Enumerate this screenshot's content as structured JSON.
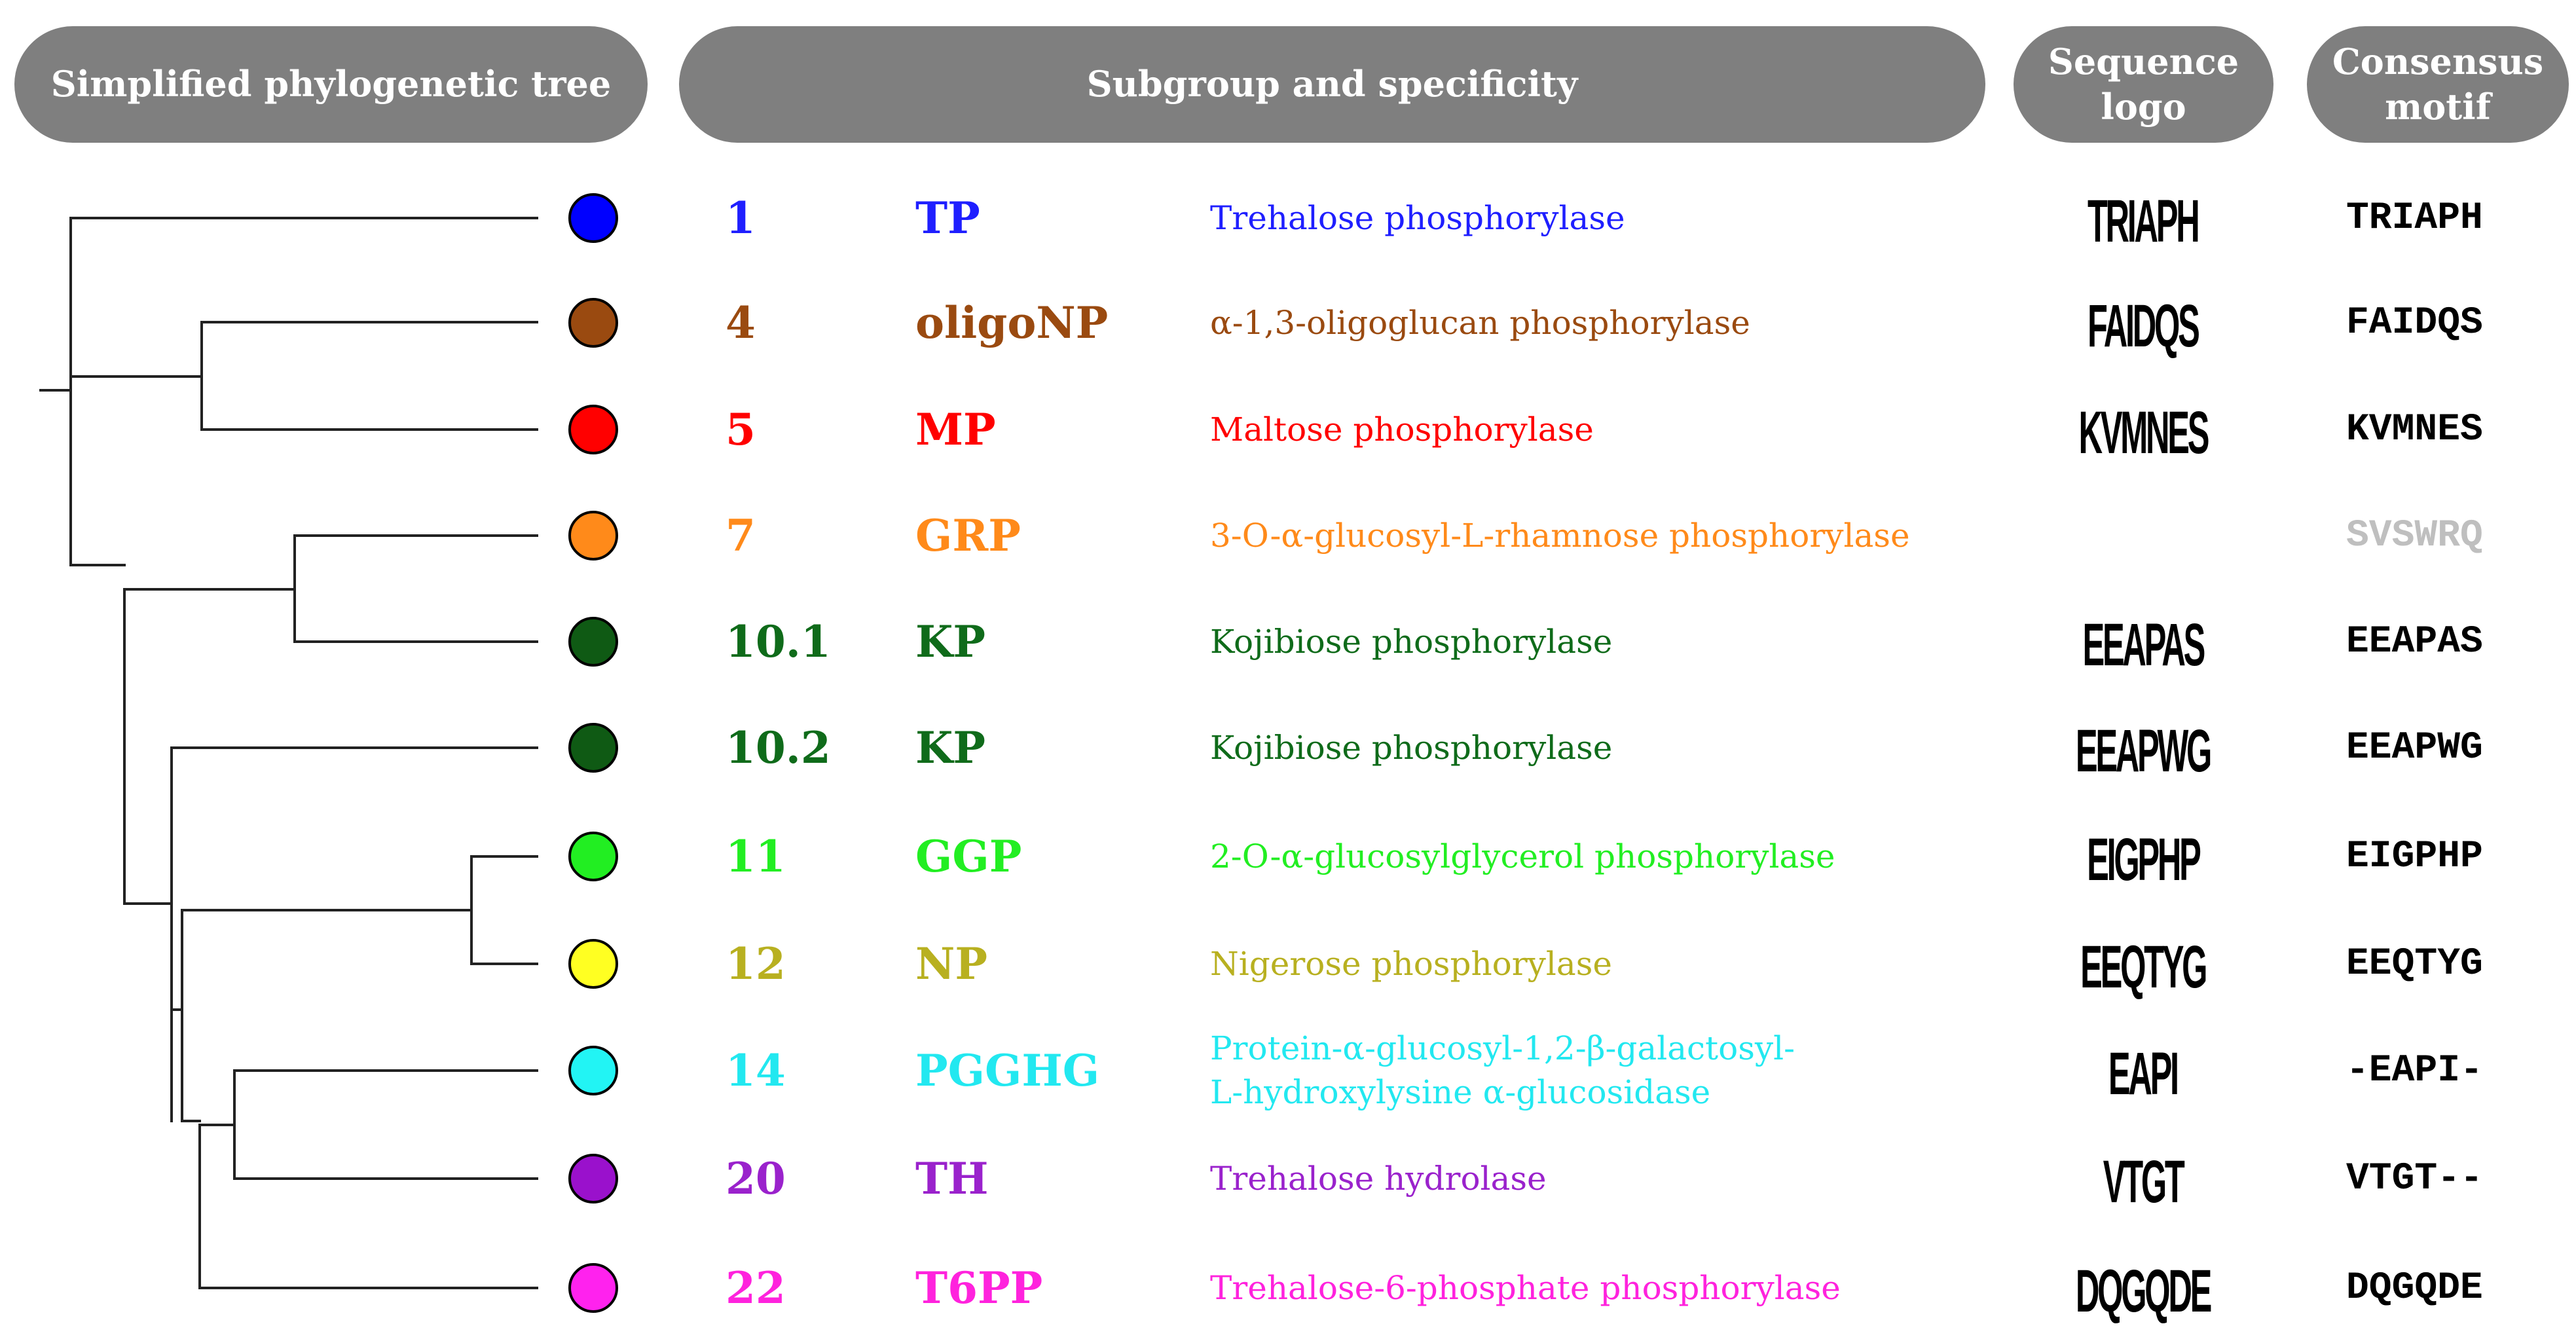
{
  "headers": {
    "tree": "Simplified phylogenetic tree",
    "subgroup": "Subgroup and specificity",
    "logo_line1": "Sequence",
    "logo_line2": "logo",
    "motif_line1": "Consensus",
    "motif_line2": "motif"
  },
  "rows": [
    {
      "num": "1",
      "abbr": "TP",
      "desc1": "Trehalose phosphorylase",
      "desc2": "",
      "logo": "TRIAPH",
      "motif": "TRIAPH",
      "color": "#1f1fff",
      "dot": "#0000ff",
      "motif_color": "#000000"
    },
    {
      "num": "4",
      "abbr": "oligoNP",
      "desc1": "α-1,3-oligoglucan phosphorylase",
      "desc2": "",
      "logo": "FAIDQS",
      "motif": "FAIDQS",
      "color": "#9a4a10",
      "dot": "#9a4a10",
      "motif_color": "#000000"
    },
    {
      "num": "5",
      "abbr": "MP",
      "desc1": "Maltose phosphorylase",
      "desc2": "",
      "logo": "KVMNES",
      "motif": "KVMNES",
      "color": "#ff0000",
      "dot": "#ff0000",
      "motif_color": "#000000"
    },
    {
      "num": "7",
      "abbr": "GRP",
      "desc1": "3-O-α-glucosyl-L-rhamnose phosphorylase",
      "desc2": "",
      "logo": "",
      "motif": "SVSWRQ",
      "color": "#ff8a1a",
      "dot": "#ff8a1a",
      "motif_color": "#bfbfbf"
    },
    {
      "num": "10.1",
      "abbr": "KP",
      "desc1": "Kojibiose phosphorylase",
      "desc2": "",
      "logo": "EEAPAS",
      "motif": "EEAPAS",
      "color": "#0f6b1a",
      "dot": "#0f5a14",
      "motif_color": "#000000"
    },
    {
      "num": "10.2",
      "abbr": "KP",
      "desc1": "Kojibiose phosphorylase",
      "desc2": "",
      "logo": "EEAPWG",
      "motif": "EEAPWG",
      "color": "#0f6b1a",
      "dot": "#0f5a14",
      "motif_color": "#000000"
    },
    {
      "num": "11",
      "abbr": "GGP",
      "desc1": "2-O-α-glucosylglycerol phosphorylase",
      "desc2": "",
      "logo": "EIGPHP",
      "motif": "EIGPHP",
      "color": "#22ee22",
      "dot": "#22ee22",
      "motif_color": "#000000"
    },
    {
      "num": "12",
      "abbr": "NP",
      "desc1": "Nigerose phosphorylase",
      "desc2": "",
      "logo": "EEQTYG",
      "motif": "EEQTYG",
      "color": "#b8b020",
      "dot": "#ffff22",
      "motif_color": "#000000"
    },
    {
      "num": "14",
      "abbr": "PGGHG",
      "desc1": "Protein-α-glucosyl-1,2-β-galactosyl-",
      "desc2": "L-hydroxylysine α-glucosidase",
      "logo": "EAPI",
      "motif": "-EAPI-",
      "color": "#22e8f0",
      "dot": "#22f4f4",
      "motif_color": "#000000"
    },
    {
      "num": "20",
      "abbr": "TH",
      "desc1": "Trehalose hydrolase",
      "desc2": "",
      "logo": "VTGT",
      "motif": "VTGT--",
      "color": "#9a22cc",
      "dot": "#9a11cc",
      "motif_color": "#000000"
    },
    {
      "num": "22",
      "abbr": "T6PP",
      "desc1": "Trehalose-6-phosphate phosphorylase",
      "desc2": "",
      "logo": "DQGQDE",
      "motif": "DQGQDE",
      "color": "#ff22dd",
      "dot": "#ff22ee",
      "motif_color": "#000000"
    }
  ]
}
